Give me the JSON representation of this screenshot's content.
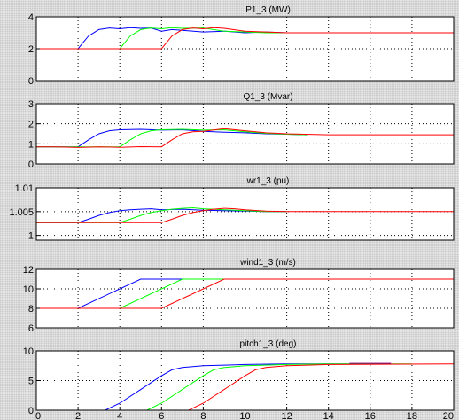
{
  "chart_data": [
    {
      "type": "line",
      "title": "P1_3 (MW)",
      "xlim": [
        0,
        20
      ],
      "ylim": [
        0,
        4
      ],
      "yticks": [
        "0",
        "2",
        "4"
      ],
      "ytick_values": [
        0,
        2,
        4
      ],
      "grid": true,
      "series": [
        {
          "color": "#0000ff",
          "x": [
            0,
            2,
            2.5,
            3.0,
            3.5,
            4.0,
            4.5,
            5.0,
            5.5,
            6.0,
            6.5,
            7.0,
            8.0,
            9.0,
            10.0,
            11.0,
            12.0
          ],
          "y": [
            2,
            2,
            2.8,
            3.2,
            3.3,
            3.25,
            3.32,
            3.28,
            3.3,
            3.1,
            3.2,
            3.15,
            3.05,
            3.1,
            3.0,
            3.05,
            3.0
          ]
        },
        {
          "color": "#00ff00",
          "x": [
            0,
            4,
            4.5,
            5.0,
            5.5,
            6.0,
            6.5,
            7.0,
            8.0,
            9.0,
            10.0,
            11.0,
            12.0
          ],
          "y": [
            2,
            2,
            2.8,
            3.2,
            3.3,
            3.25,
            3.32,
            3.28,
            3.3,
            3.1,
            3.05,
            3.0,
            3.0
          ]
        },
        {
          "color": "#ff0000",
          "x": [
            0,
            6,
            6.5,
            7.0,
            7.5,
            8.0,
            8.5,
            9.0,
            10.0,
            11.0,
            12.0,
            20.0
          ],
          "y": [
            2,
            2,
            2.8,
            3.2,
            3.3,
            3.25,
            3.32,
            3.28,
            3.1,
            3.05,
            3.0,
            3.0
          ]
        }
      ]
    },
    {
      "type": "line",
      "title": "Q1_3 (Mvar)",
      "xlim": [
        0,
        20
      ],
      "ylim": [
        0,
        3
      ],
      "yticks": [
        "0",
        "1",
        "2",
        "3"
      ],
      "ytick_values": [
        0,
        1,
        2,
        3
      ],
      "grid": true,
      "series": [
        {
          "color": "#0000ff",
          "x": [
            0,
            2,
            2.5,
            3.0,
            3.5,
            4.0,
            5.0,
            6.0,
            7.0,
            8.0,
            9.0,
            10.0,
            11.0,
            12.0,
            13.0
          ],
          "y": [
            0.85,
            0.85,
            1.2,
            1.5,
            1.65,
            1.7,
            1.72,
            1.68,
            1.7,
            1.62,
            1.58,
            1.55,
            1.5,
            1.48,
            1.45
          ]
        },
        {
          "color": "#00ff00",
          "x": [
            0,
            4,
            4.5,
            5.0,
            5.5,
            6.0,
            7.0,
            8.0,
            9.0,
            10.0,
            11.0,
            12.0,
            13.0
          ],
          "y": [
            0.85,
            0.85,
            1.2,
            1.5,
            1.65,
            1.7,
            1.72,
            1.68,
            1.7,
            1.6,
            1.52,
            1.48,
            1.45
          ]
        },
        {
          "color": "#ff0000",
          "x": [
            0,
            1,
            2,
            3,
            4,
            5,
            6,
            6.5,
            7.0,
            7.5,
            8.0,
            9.0,
            10.0,
            11.0,
            12.0,
            14.0,
            20.0
          ],
          "y": [
            0.85,
            0.85,
            0.82,
            0.85,
            0.83,
            0.86,
            0.85,
            1.2,
            1.5,
            1.6,
            1.62,
            1.75,
            1.65,
            1.55,
            1.5,
            1.45,
            1.45
          ]
        }
      ]
    },
    {
      "type": "line",
      "title": "wr1_3 (pu)",
      "xlim": [
        0,
        20
      ],
      "ylim": [
        0.999,
        1.01
      ],
      "yticks": [
        "1",
        "1.005",
        "1.01"
      ],
      "ytick_values": [
        1.0,
        1.005,
        1.01
      ],
      "grid": true,
      "series": [
        {
          "color": "#0000ff",
          "x": [
            0,
            2,
            2.5,
            3.0,
            3.5,
            4.0,
            4.5,
            5.0,
            5.5,
            6.0,
            7.0,
            8.0,
            9.0,
            10.0,
            11.0,
            12.0
          ],
          "y": [
            1.0027,
            1.0027,
            1.0034,
            1.0042,
            1.0048,
            1.0052,
            1.0054,
            1.0055,
            1.0056,
            1.0054,
            1.0055,
            1.0053,
            1.0052,
            1.0051,
            1.005,
            1.005
          ]
        },
        {
          "color": "#00ff00",
          "x": [
            0,
            4,
            4.5,
            5.0,
            5.5,
            6.0,
            6.5,
            7.0,
            7.5,
            8.0,
            9.0,
            10.0,
            11.0,
            12.0
          ],
          "y": [
            1.0027,
            1.0027,
            1.0034,
            1.0042,
            1.0048,
            1.0052,
            1.0055,
            1.0057,
            1.0058,
            1.0056,
            1.0054,
            1.0052,
            1.005,
            1.005
          ]
        },
        {
          "color": "#ff0000",
          "x": [
            0,
            6,
            6.5,
            7.0,
            7.5,
            8.0,
            8.5,
            9.0,
            9.5,
            10.0,
            11.0,
            12.0,
            20.0
          ],
          "y": [
            1.0027,
            1.0027,
            1.0034,
            1.0042,
            1.0048,
            1.0052,
            1.0055,
            1.0057,
            1.0056,
            1.0054,
            1.0051,
            1.005,
            1.005
          ]
        }
      ]
    },
    {
      "type": "line",
      "title": "wind1_3 (m/s)",
      "xlim": [
        0,
        20
      ],
      "ylim": [
        6,
        12
      ],
      "yticks": [
        "6",
        "8",
        "10",
        "12"
      ],
      "ytick_values": [
        6,
        8,
        10,
        12
      ],
      "grid": true,
      "series": [
        {
          "color": "#0000ff",
          "x": [
            0,
            2,
            5,
            7
          ],
          "y": [
            8,
            8,
            11,
            11
          ]
        },
        {
          "color": "#00ff00",
          "x": [
            0,
            4,
            7,
            9
          ],
          "y": [
            8,
            8,
            11,
            11
          ]
        },
        {
          "color": "#ff0000",
          "x": [
            0,
            6,
            9,
            20
          ],
          "y": [
            8,
            8,
            11,
            11
          ]
        }
      ]
    },
    {
      "type": "line",
      "title": "pitch1_3 (deg)",
      "xlim": [
        0,
        20
      ],
      "ylim": [
        0,
        10
      ],
      "yticks": [
        "0",
        "5",
        "10"
      ],
      "ytick_values": [
        0,
        5,
        10
      ],
      "xticks": [
        "0",
        "2",
        "4",
        "6",
        "8",
        "10",
        "12",
        "14",
        "16",
        "18",
        "20"
      ],
      "xtick_values": [
        0,
        2,
        4,
        6,
        8,
        10,
        12,
        14,
        16,
        18,
        20
      ],
      "grid": true,
      "series": [
        {
          "color": "#0000ff",
          "x": [
            0,
            3.3,
            4.0,
            5.0,
            6.0,
            6.5,
            7.0,
            8.0,
            9.0,
            10.0,
            12.0,
            16.0
          ],
          "y": [
            0,
            0,
            1.2,
            3.5,
            5.8,
            6.8,
            7.2,
            7.5,
            7.6,
            7.7,
            7.8,
            7.8
          ]
        },
        {
          "color": "#00ff00",
          "x": [
            0,
            5.3,
            6.0,
            7.0,
            8.0,
            8.5,
            9.0,
            10.0,
            11.0,
            12.0,
            14.0,
            18.0
          ],
          "y": [
            0,
            0,
            1.2,
            3.5,
            5.8,
            6.8,
            7.2,
            7.5,
            7.6,
            7.7,
            7.8,
            7.8
          ]
        },
        {
          "color": "#ff0000",
          "x": [
            0,
            7.3,
            8.0,
            9.0,
            10.0,
            10.5,
            11.0,
            12.0,
            13.0,
            14.0,
            20.0
          ],
          "y": [
            0,
            0,
            1.2,
            3.5,
            5.8,
            6.8,
            7.2,
            7.5,
            7.6,
            7.7,
            7.8
          ]
        },
        {
          "color": "#800080",
          "x": [
            15.0,
            17.0
          ],
          "y": [
            7.9,
            7.9
          ]
        }
      ]
    }
  ]
}
